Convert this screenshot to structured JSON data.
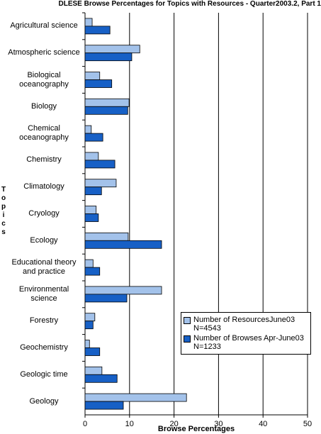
{
  "chart_data": {
    "type": "hbar",
    "title": "DLESE Browse Percentages for Topics with Resources - Quarter2003.2, Part 1",
    "xlabel": "Browse Percentages",
    "ylabel": "Topics",
    "categories": [
      "Agricultural science",
      "Atmospheric science",
      "Biological oceanography",
      "Biology",
      "Chemical oceanography",
      "Chemistry",
      "Climatology",
      "Cryology",
      "Ecology",
      "Educational theory and practice",
      "Environmental science",
      "Forestry",
      "Geochemistry",
      "Geologic time",
      "Geology"
    ],
    "series": [
      {
        "name": "Number of ResourcesJune03 N=4543",
        "color": "#a3c2ea",
        "values": [
          1.6,
          12.3,
          3.3,
          9.9,
          1.4,
          3.0,
          7.0,
          2.5,
          9.7,
          1.8,
          17.2,
          2.2,
          1.0,
          3.8,
          22.8
        ]
      },
      {
        "name": "Number of Browses Apr-June03 N=1233",
        "color": "#1760c6",
        "values": [
          5.6,
          10.5,
          6.0,
          9.6,
          4.0,
          6.7,
          3.7,
          3.0,
          17.2,
          3.3,
          9.4,
          1.8,
          3.3,
          7.2,
          8.6
        ]
      }
    ],
    "xlim": [
      0,
      50
    ],
    "xticks": [
      0,
      10,
      20,
      30,
      40,
      50
    ],
    "grid": true
  }
}
